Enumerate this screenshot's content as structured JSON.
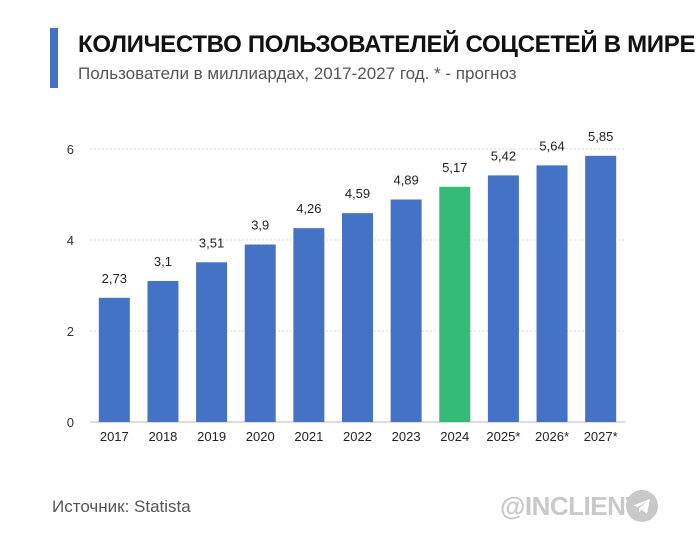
{
  "header": {
    "title": "КОЛИЧЕСТВО ПОЛЬЗОВАТЕЛЕЙ СОЦСЕТЕЙ В МИРЕ",
    "subtitle": "Пользователи в миллиардах, 2017-2027 год. * - прогноз"
  },
  "footer": {
    "source": "Источник: Statista",
    "brand": "@INCLIENT",
    "brand_icon": "telegram-icon"
  },
  "colors": {
    "bar": "#4472c4",
    "highlight": "#33bb77",
    "grid": "#d9d9d9",
    "accent": "#4472c4"
  },
  "chart_data": {
    "type": "bar",
    "categories": [
      "2017",
      "2018",
      "2019",
      "2020",
      "2021",
      "2022",
      "2023",
      "2024",
      "2025*",
      "2026*",
      "2027*"
    ],
    "values": [
      2.73,
      3.1,
      3.51,
      3.9,
      4.26,
      4.59,
      4.89,
      5.17,
      5.42,
      5.64,
      5.85
    ],
    "data_labels": [
      "2,73",
      "3,1",
      "3,51",
      "3,9",
      "4,26",
      "4,59",
      "4,89",
      "5,17",
      "5,42",
      "5,64",
      "5,85"
    ],
    "highlight_category": "2024",
    "ylim": [
      0,
      6
    ],
    "yticks": [
      "0",
      "2",
      "4",
      "6"
    ],
    "ytick_values": [
      0,
      2,
      4,
      6
    ],
    "grid": true,
    "legend": "none"
  }
}
